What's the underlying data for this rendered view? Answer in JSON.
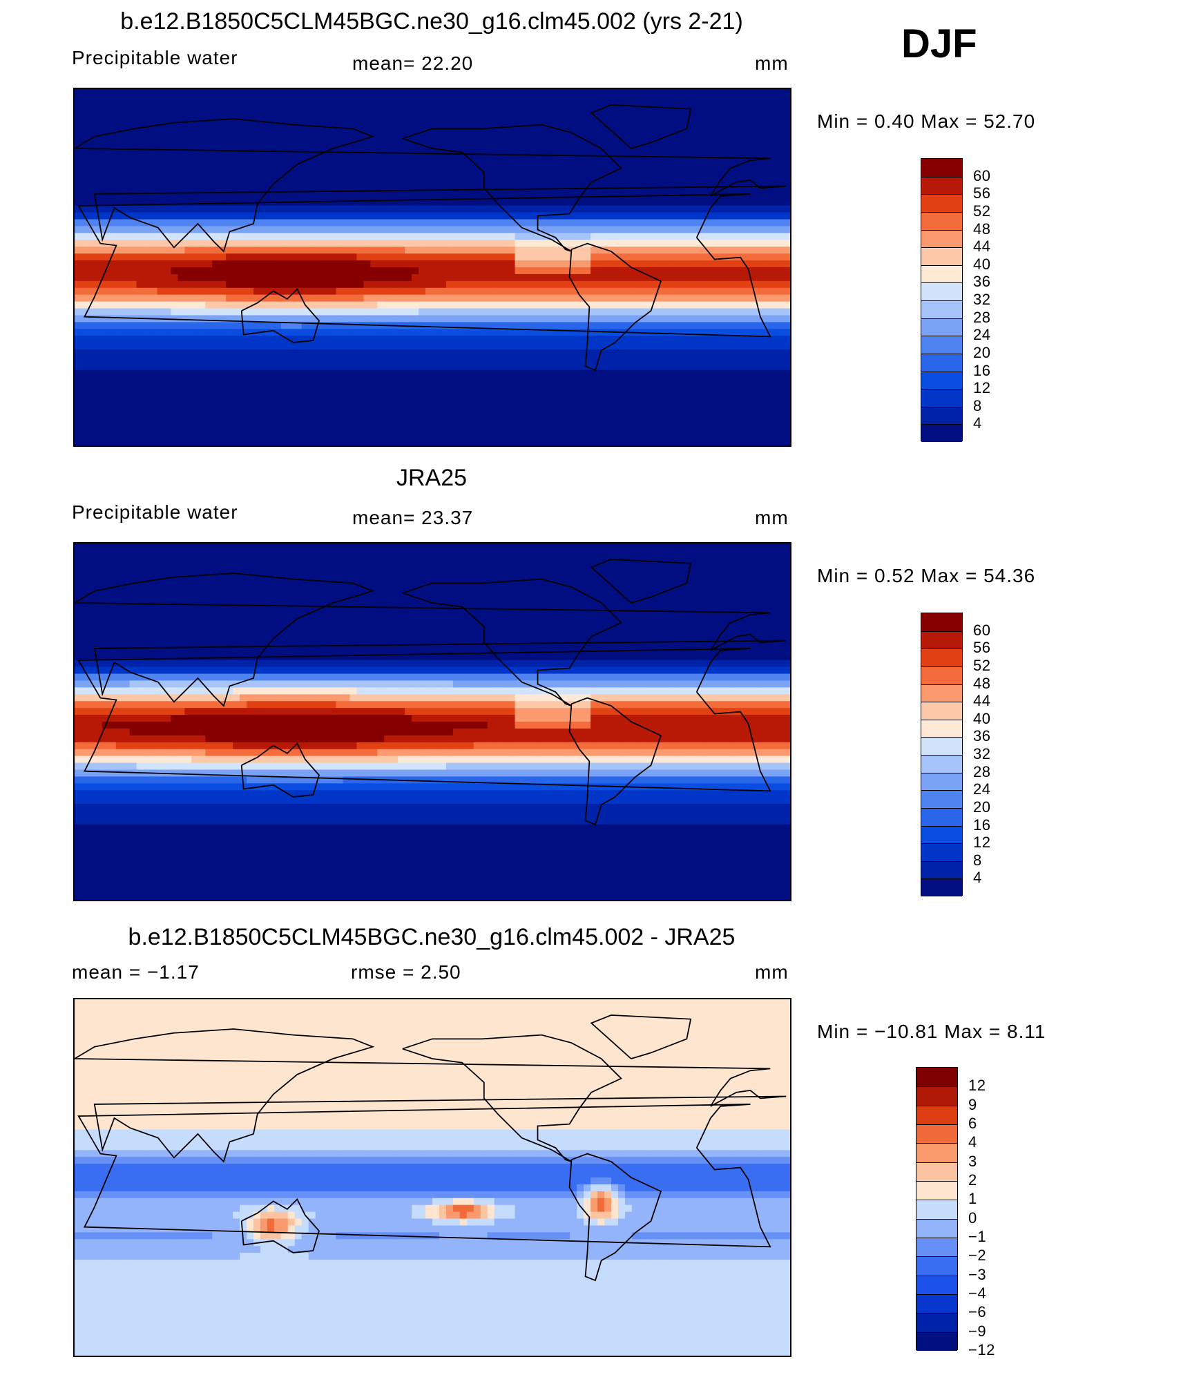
{
  "season": "DJF",
  "panels": [
    {
      "title": "b.e12.B1850C5CLM45BGC.ne30_g16.clm45.002 (yrs 2-21)",
      "left_label": "Precipitable  water",
      "center_label": "mean=   22.20",
      "units": "mm",
      "minmax": "Min  =     0.40  Max  =    52.70",
      "kind": "abs",
      "cbar_labels": [
        "60",
        "56",
        "52",
        "48",
        "44",
        "40",
        "36",
        "32",
        "28",
        "24",
        "20",
        "16",
        "12",
        "8",
        "4"
      ]
    },
    {
      "title": "JRA25",
      "left_label": "Precipitable  water",
      "center_label": "mean=   23.37",
      "units": "mm",
      "minmax": "Min  =     0.52  Max  =    54.36",
      "kind": "abs",
      "cbar_labels": [
        "60",
        "56",
        "52",
        "48",
        "44",
        "40",
        "36",
        "32",
        "28",
        "24",
        "20",
        "16",
        "12",
        "8",
        "4"
      ]
    },
    {
      "title": "b.e12.B1850C5CLM45BGC.ne30_g16.clm45.002 - JRA25",
      "left_label": "mean  =    −1.17",
      "center_label": "rmse  =     2.50",
      "units": "mm",
      "minmax": "Min  =  −10.81  Max  =     8.11",
      "kind": "diff",
      "cbar_labels": [
        "12",
        "9",
        "6",
        "4",
        "3",
        "2",
        "1",
        "0",
        "−1",
        "−2",
        "−3",
        "−4",
        "−6",
        "−9",
        "−12"
      ]
    }
  ],
  "colors": {
    "abs_scale": [
      "#000e82",
      "#0022a8",
      "#0036c8",
      "#0a4de0",
      "#2a66ea",
      "#4f84f0",
      "#7aa3f5",
      "#a6c3fa",
      "#d2e4fc",
      "#fde9d6",
      "#fcc8a8",
      "#fb9a6f",
      "#f46c3c",
      "#e24114",
      "#b81806",
      "#860000"
    ],
    "diff_scale": [
      "#00107e",
      "#0022a8",
      "#0a36d0",
      "#1c52ea",
      "#3a6ef2",
      "#6690f6",
      "#93b4fa",
      "#c6dcfd",
      "#fde5cf",
      "#fcc3a0",
      "#f89a6c",
      "#f06a3a",
      "#dc3e12",
      "#b01806",
      "#7e0000"
    ],
    "coast": "#000000"
  }
}
